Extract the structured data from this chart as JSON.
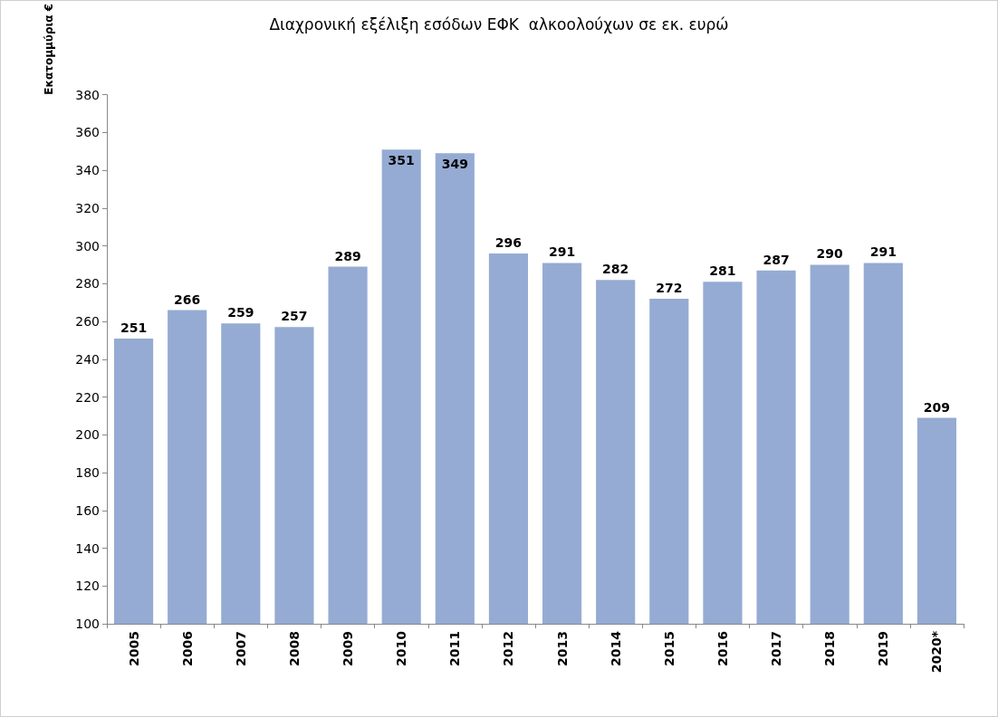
{
  "chart_data": {
    "type": "bar",
    "title": "Διαχρονική εξέλιξη εσόδων ΕΦΚ  αλκοολούχων σε εκ. ευρώ",
    "ylabel": "Εκατομμύρια €",
    "categories": [
      "2005",
      "2006",
      "2007",
      "2008",
      "2009",
      "2010",
      "2011",
      "2012",
      "2013",
      "2014",
      "2015",
      "2016",
      "2017",
      "2018",
      "2019",
      "2020*"
    ],
    "values": [
      251,
      266,
      259,
      257,
      289,
      351,
      349,
      296,
      291,
      282,
      272,
      281,
      287,
      290,
      291,
      209
    ],
    "color": "#95abd3",
    "ylim": [
      100,
      380
    ],
    "yticks": [
      100,
      120,
      140,
      160,
      180,
      200,
      220,
      240,
      260,
      280,
      300,
      320,
      340,
      360,
      380
    ],
    "grid": false,
    "data_labels": true
  }
}
